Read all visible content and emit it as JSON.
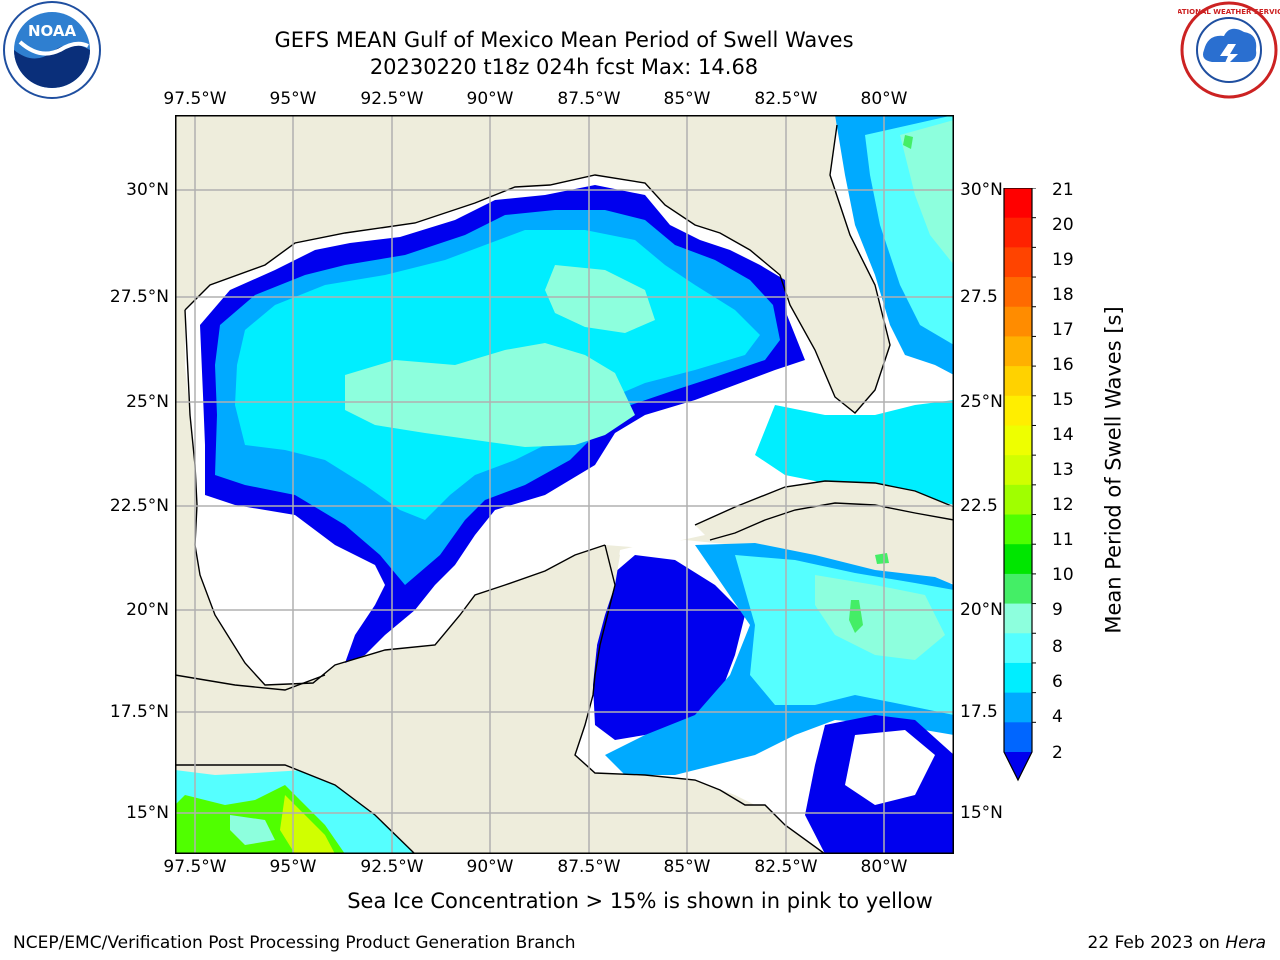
{
  "header": {
    "title_line1": "GEFS MEAN Gulf of Mexico Mean Period of Swell Waves",
    "title_line2": "20230220 t18z 024h fcst   Max: 14.68"
  },
  "logos": {
    "left": {
      "icon": "noaa-logo",
      "text": "NOAA"
    },
    "right": {
      "icon": "nws-logo",
      "text": "NATIONAL WEATHER SERVICE"
    }
  },
  "map": {
    "lon_ticks": [
      "97.5°W",
      "95°W",
      "92.5°W",
      "90°W",
      "87.5°W",
      "85°W",
      "82.5°W",
      "80°W"
    ],
    "lat_ticks_left": [
      "30°N",
      "27.5°N",
      "25°N",
      "22.5°N",
      "20°N",
      "17.5°N",
      "15°N"
    ],
    "lat_ticks_right": [
      "30°N",
      "27.5",
      "25°N",
      "22.5",
      "20°N",
      "17.5",
      "15°N"
    ],
    "colors": {
      "land": "#eeeddc",
      "ocean_white": "#ffffff",
      "grid": "#b0b0b0"
    }
  },
  "colorbar": {
    "label": "Mean Period of Swell Waves [s]",
    "ticks": [
      "21",
      "20",
      "19",
      "18",
      "17",
      "16",
      "15",
      "14",
      "13",
      "12",
      "11",
      "10",
      "9",
      "8",
      "6",
      "4",
      "2"
    ],
    "colors": [
      "#ff0000",
      "#ff2200",
      "#ff4400",
      "#ff6a00",
      "#ff8c00",
      "#ffb000",
      "#ffd200",
      "#ffee00",
      "#eeff00",
      "#d0ff00",
      "#a0ff00",
      "#50ff00",
      "#00e600",
      "#44ee66",
      "#8dffdd",
      "#55ffff",
      "#00eeff",
      "#00aaff",
      "#0066ff",
      "#0000ee"
    ]
  },
  "note": "Sea Ice Concentration > 15% is shown in pink to yellow",
  "footer": {
    "left": "NCEP/EMC/Verification Post Processing Product Generation Branch",
    "right_date": "22 Feb 2023 on ",
    "right_host": "Hera"
  }
}
